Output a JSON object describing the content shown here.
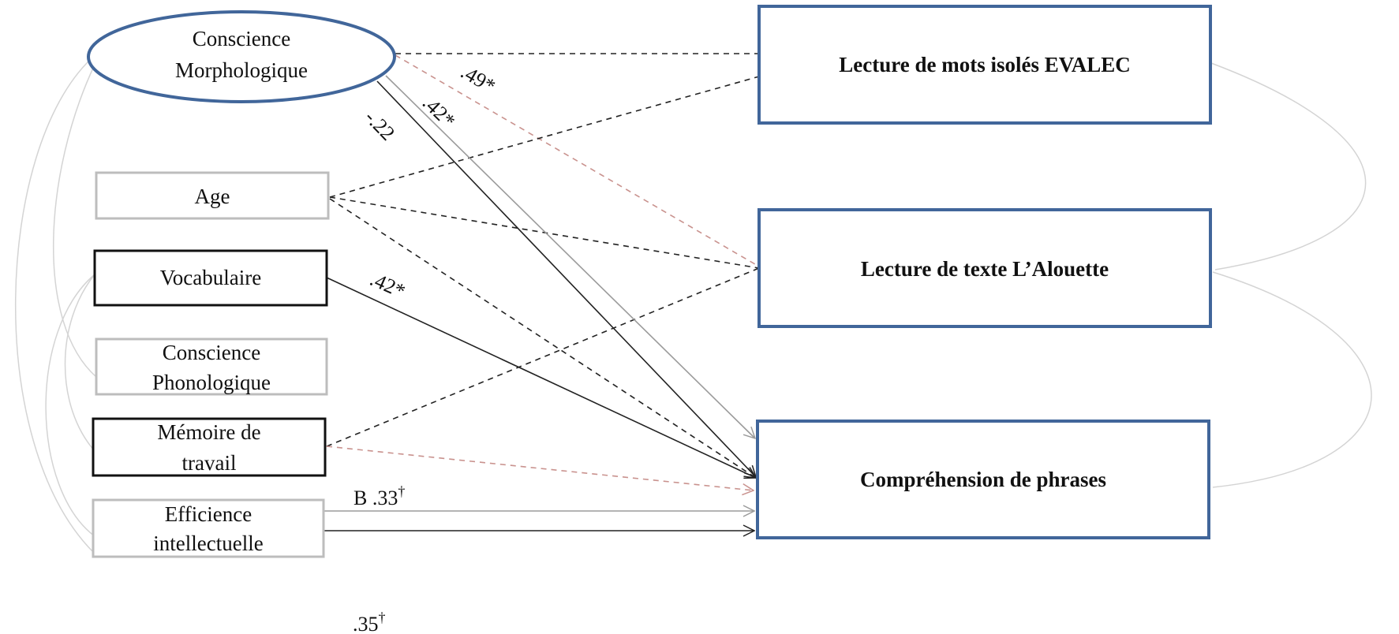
{
  "predictors": {
    "morph": {
      "line1": "Conscience",
      "line2": "Morphologique"
    },
    "age": {
      "label": "Age"
    },
    "vocab": {
      "label": "Vocabulaire"
    },
    "phono": {
      "line1": "Conscience",
      "line2": "Phonologique"
    },
    "memory": {
      "line1": "Mémoire de",
      "line2": "travail"
    },
    "efficiency": {
      "line1": "Efficience",
      "line2": "intellectuelle"
    }
  },
  "outcomes": {
    "reading_words": {
      "label": "Lecture de mots isolés EVALEC"
    },
    "reading_text": {
      "label": "Lecture de texte L’Alouette"
    },
    "comprehension": {
      "label": "Compréhension de phrases"
    }
  },
  "coefficients": {
    "morph_words": ".49*",
    "morph_comp_gray": ".42*",
    "morph_comp_black": "-.22",
    "vocab_comp": ".42*",
    "eff_comp_gray": "B .33",
    "eff_comp_black": ".35",
    "dagger": "†"
  },
  "colors": {
    "ellipse_border": "#41669a",
    "outcome_border": "#41669a",
    "gray_box_border": "#bdbdbd",
    "black_box_border": "#111111",
    "path_black": "#222222",
    "path_gray": "#9b9b9b",
    "path_pink": "#c9928e",
    "correlation_arc": "#d4d4d4"
  }
}
